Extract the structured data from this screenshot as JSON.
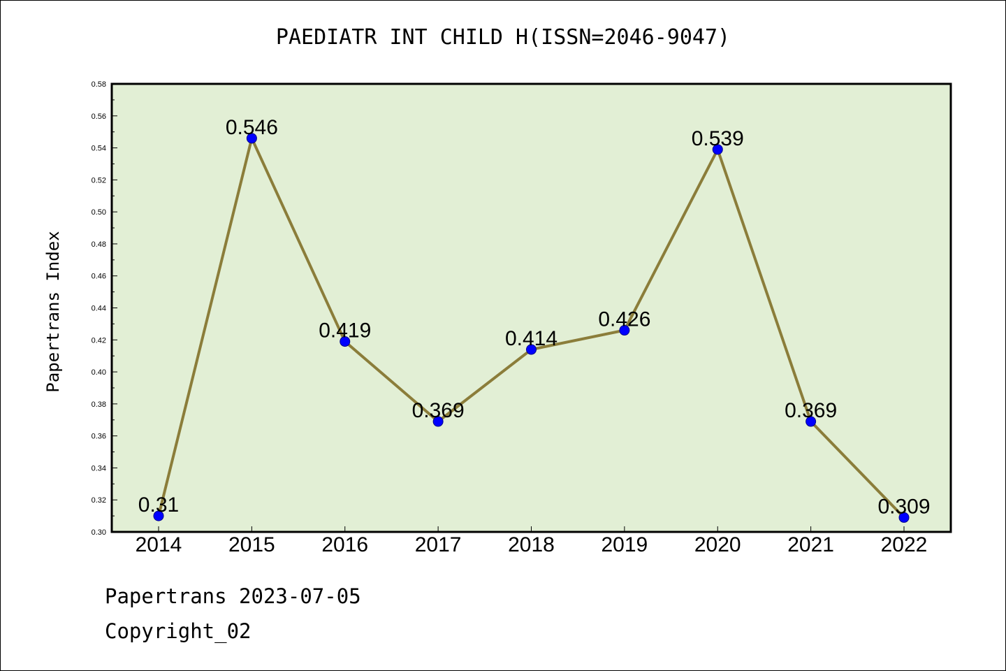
{
  "chart_data": {
    "type": "line",
    "title": "PAEDIATR INT CHILD H(ISSN=2046-9047)",
    "xlabel": "",
    "ylabel": "Papertrans Index",
    "categories": [
      "2014",
      "2015",
      "2016",
      "2017",
      "2018",
      "2019",
      "2020",
      "2021",
      "2022"
    ],
    "values": [
      0.31,
      0.546,
      0.419,
      0.369,
      0.414,
      0.426,
      0.539,
      0.369,
      0.309
    ],
    "data_labels": [
      "0.31",
      "0.546",
      "0.419",
      "0.369",
      "0.414",
      "0.426",
      "0.539",
      "0.369",
      "0.309"
    ],
    "ylim": [
      0.3,
      0.58
    ],
    "yticks": [
      "0.30",
      "0.32",
      "0.34",
      "0.36",
      "0.38",
      "0.40",
      "0.42",
      "0.44",
      "0.46",
      "0.48",
      "0.50",
      "0.52",
      "0.54",
      "0.56",
      "0.58"
    ],
    "grid": false,
    "colors": {
      "line": "#8b7d3a",
      "marker": "#0000ff",
      "plot_bg": "#e2efd5"
    }
  },
  "footer": {
    "source": "Papertrans 2023-07-05",
    "copyright": "Copyright_02"
  }
}
